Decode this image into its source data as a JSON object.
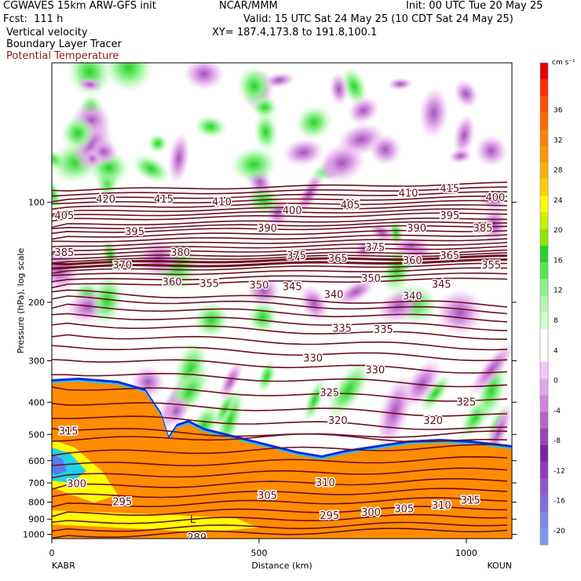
{
  "header": {
    "model_line": "CGWAVES 15km ARW-GFS init",
    "fcst_line": "Fcst:  111 h",
    "ncar_line": "NCAR/MMM",
    "valid_line": "Valid: 15 UTC Sat 24 May 25 (10 CDT Sat 24 May 25)",
    "xy_line": "XY= 187.4,173.8 to 191.8,100.1",
    "init_line": "Init: 00 UTC Tue 20 May 25",
    "field1": "Vertical velocity",
    "field2": "Boundary Layer Tracer",
    "field3": "Potential Temperature"
  },
  "colors": {
    "theta_contour": "#6b0f1f",
    "field3_text": "#8b1a1a",
    "boundary_layer": "#ff8c00"
  },
  "chart_data": {
    "type": "heatmap",
    "xlabel": "Distance (km)",
    "ylabel": "Pressure (hPa), log scale",
    "x_ticks": [
      0,
      500,
      1000
    ],
    "x_range": [
      0,
      1110
    ],
    "y_ticks": [
      100,
      200,
      300,
      400,
      500,
      600,
      700,
      800,
      900,
      1000
    ],
    "y_range": [
      1030,
      38
    ],
    "y_scale": "log",
    "left_endpoint": "KABR",
    "right_endpoint": "KOUN",
    "colorbar": {
      "unit": "cm s⁻¹",
      "tick_labels": [
        36,
        32,
        28,
        24,
        20,
        16,
        12,
        8,
        4,
        0,
        -4,
        -8,
        -12,
        -16,
        -20
      ],
      "colors": [
        "#e80000",
        "#ff2a00",
        "#ff5000",
        "#ff6a00",
        "#ff8000",
        "#ff9400",
        "#ffb000",
        "#ffd000",
        "#ffff00",
        "#c8f000",
        "#8ce600",
        "#28d228",
        "#55e655",
        "#8cf08c",
        "#b4f5b4",
        "#d2fad2",
        "#ffffff",
        "#ffffff",
        "#f0c8f0",
        "#e0a8e6",
        "#cc88d8",
        "#b466c6",
        "#9a44b4",
        "#7e22a2",
        "#8e3cb8",
        "#8a5ac8",
        "#8070d6",
        "#7e88e2",
        "#7a9cee"
      ]
    },
    "theta_contours": [
      {
        "value": "420",
        "label_x_km": 130,
        "p": 98
      },
      {
        "value": "415",
        "label_x_km": 270,
        "p": 98
      },
      {
        "value": "410",
        "label_x_km": 410,
        "p": 100
      },
      {
        "value": "405",
        "label_x_km": 30,
        "p": 110
      },
      {
        "value": "400",
        "label_x_km": 580,
        "p": 106
      },
      {
        "value": "405",
        "label_x_km": 720,
        "p": 102
      },
      {
        "value": "410",
        "label_x_km": 860,
        "p": 94
      },
      {
        "value": "415",
        "label_x_km": 960,
        "p": 91
      },
      {
        "value": "400",
        "label_x_km": 1070,
        "p": 97
      },
      {
        "value": "395",
        "label_x_km": 200,
        "p": 123
      },
      {
        "value": "390",
        "label_x_km": 520,
        "p": 120
      },
      {
        "value": "395",
        "label_x_km": 960,
        "p": 110
      },
      {
        "value": "390",
        "label_x_km": 880,
        "p": 120
      },
      {
        "value": "385",
        "label_x_km": 30,
        "p": 142
      },
      {
        "value": "380",
        "label_x_km": 310,
        "p": 142
      },
      {
        "value": "385",
        "label_x_km": 1040,
        "p": 120
      },
      {
        "value": "375",
        "label_x_km": 590,
        "p": 145
      },
      {
        "value": "375",
        "label_x_km": 780,
        "p": 137
      },
      {
        "value": "365",
        "label_x_km": 690,
        "p": 148
      },
      {
        "value": "370",
        "label_x_km": 170,
        "p": 155
      },
      {
        "value": "360",
        "label_x_km": 870,
        "p": 150
      },
      {
        "value": "365",
        "label_x_km": 960,
        "p": 145
      },
      {
        "value": "355",
        "label_x_km": 1060,
        "p": 155
      },
      {
        "value": "360",
        "label_x_km": 290,
        "p": 174
      },
      {
        "value": "355",
        "label_x_km": 380,
        "p": 176
      },
      {
        "value": "350",
        "label_x_km": 500,
        "p": 178
      },
      {
        "value": "345",
        "label_x_km": 580,
        "p": 180
      },
      {
        "value": "350",
        "label_x_km": 770,
        "p": 170
      },
      {
        "value": "345",
        "label_x_km": 940,
        "p": 177
      },
      {
        "value": "340",
        "label_x_km": 680,
        "p": 190
      },
      {
        "value": "340",
        "label_x_km": 870,
        "p": 192
      },
      {
        "value": "335",
        "label_x_km": 700,
        "p": 240
      },
      {
        "value": "335",
        "label_x_km": 800,
        "p": 242
      },
      {
        "value": "330",
        "label_x_km": 630,
        "p": 295
      },
      {
        "value": "330",
        "label_x_km": 780,
        "p": 320
      },
      {
        "value": "325",
        "label_x_km": 670,
        "p": 375
      },
      {
        "value": "325",
        "label_x_km": 1000,
        "p": 400
      },
      {
        "value": "320",
        "label_x_km": 690,
        "p": 455
      },
      {
        "value": "320",
        "label_x_km": 920,
        "p": 455
      },
      {
        "value": "315",
        "label_x_km": 40,
        "p": 490
      },
      {
        "value": "315",
        "label_x_km": 1010,
        "p": 790
      },
      {
        "value": "310",
        "label_x_km": 660,
        "p": 700
      },
      {
        "value": "310",
        "label_x_km": 940,
        "p": 820
      },
      {
        "value": "305",
        "label_x_km": 520,
        "p": 765
      },
      {
        "value": "305",
        "label_x_km": 850,
        "p": 840
      },
      {
        "value": "300",
        "label_x_km": 60,
        "p": 705
      },
      {
        "value": "300",
        "label_x_km": 770,
        "p": 860
      },
      {
        "value": "295",
        "label_x_km": 170,
        "p": 800
      },
      {
        "value": "295",
        "label_x_km": 670,
        "p": 880
      },
      {
        "value": "289",
        "label_x_km": 350,
        "p": 1025
      }
    ],
    "annotations": [
      {
        "text": "L",
        "x_km": 340,
        "p": 905
      }
    ]
  }
}
